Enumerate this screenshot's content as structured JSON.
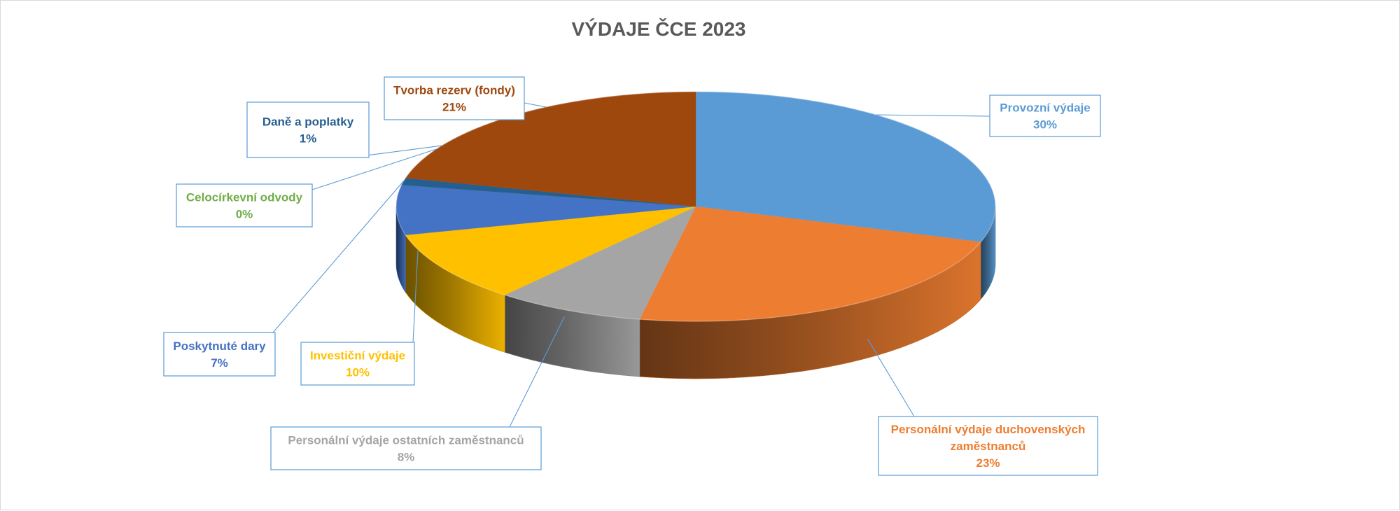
{
  "chart_data": {
    "type": "pie",
    "title": "VÝDAJE ČCE 2023",
    "style": "3d-exploded-perspective",
    "data_labels": "category-name-and-percentage",
    "slices": [
      {
        "label": "Provozní výdaje",
        "value": 30,
        "value_text": "30%",
        "color": "#5B9BD5"
      },
      {
        "label": "Personální výdaje duchovenských zaměstnanců",
        "value": 23,
        "value_text": "23%",
        "color": "#ED7D31"
      },
      {
        "label": "Personální výdaje ostatních zaměstnanců",
        "value": 8,
        "value_text": "8%",
        "color": "#A5A5A5"
      },
      {
        "label": "Investiční výdaje",
        "value": 10,
        "value_text": "10%",
        "color": "#FFC000"
      },
      {
        "label": "Poskytnuté dary",
        "value": 7,
        "value_text": "7%",
        "color": "#4472C4"
      },
      {
        "label": "Celocírkevní odvody",
        "value": 0,
        "value_text": "0%",
        "color": "#70AD47"
      },
      {
        "label": "Daně a poplatky",
        "value": 1,
        "value_text": "1%",
        "color": "#255E91"
      },
      {
        "label": "Tvorba rezerv (fondy)",
        "value": 21,
        "value_text": "21%",
        "color": "#9E480E"
      }
    ]
  }
}
